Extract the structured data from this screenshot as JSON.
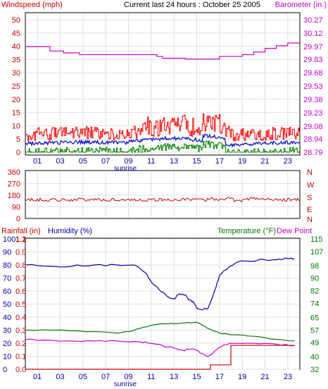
{
  "chart_data": [
    {
      "type": "line",
      "title": "Current last 24 hours : October 25 2005",
      "left_axis": {
        "label": "Windspeed (mph)",
        "ticks": [
          0,
          5,
          10,
          15,
          20,
          25,
          30,
          35,
          40,
          45,
          50
        ],
        "ylim": [
          0,
          50
        ]
      },
      "right_axis": {
        "label": "Barometer (in.)",
        "ticks": [
          28.79,
          28.94,
          29.08,
          29.23,
          29.38,
          29.53,
          29.68,
          29.83,
          29.97,
          30.12,
          30.27
        ],
        "ylim": [
          28.79,
          30.27
        ]
      },
      "x_ticks": [
        "01",
        "03",
        "05",
        "07",
        "09",
        "11",
        "13",
        "15",
        "17",
        "19",
        "21",
        "23"
      ],
      "sunrise_label": "sunrise",
      "grid": true,
      "colors": {
        "windspeed_gust": "#ff0000",
        "windspeed_avg": "#0000cc",
        "windspeed_min": "#008000",
        "barometer": "#cc00cc"
      },
      "series": [
        {
          "name": "Barometer",
          "axis": "right",
          "x": [
            0,
            2.0,
            2.1,
            3.0,
            3.3,
            4.5,
            4.7,
            8.0,
            11.5,
            12.0,
            13.0,
            14.0,
            16.8,
            17.0,
            19.0,
            20.0,
            21.0,
            22.0,
            23.0,
            24.0
          ],
          "values": [
            29.97,
            29.97,
            29.92,
            29.92,
            29.9,
            29.9,
            29.88,
            29.88,
            29.86,
            29.84,
            29.84,
            29.83,
            29.83,
            29.86,
            29.88,
            29.91,
            29.95,
            29.98,
            30.01,
            30.01
          ]
        }
      ]
    },
    {
      "type": "line",
      "left_axis": {
        "ticks": [
          0,
          90,
          180,
          270,
          360
        ],
        "ylim": [
          0,
          360
        ]
      },
      "right_labels": [
        "N",
        "W",
        "S",
        "E",
        "N"
      ],
      "x_ticks": [
        "01",
        "03",
        "05",
        "07",
        "09",
        "11",
        "13",
        "15",
        "17",
        "19",
        "21",
        "23"
      ],
      "colors": {
        "direction": "#cc0000"
      },
      "series": [
        {
          "name": "Wind direction",
          "mean": 145
        }
      ]
    },
    {
      "type": "line",
      "rainfall_axis": {
        "label": "Rainfall (in)",
        "ticks": [
          0.0,
          0.1,
          0.2,
          0.3,
          0.4,
          0.5,
          0.6,
          0.7,
          0.8,
          0.9,
          1.1,
          1.2
        ],
        "ylim": [
          0,
          1.2
        ]
      },
      "humidity_axis": {
        "label": "Humidity (%)",
        "ticks": [
          0,
          10,
          20,
          30,
          40,
          50,
          60,
          70,
          80,
          90,
          100
        ],
        "ylim": [
          0,
          100
        ]
      },
      "temperature_label": "Temperature (°F)",
      "dewpoint_label": "Dew Point",
      "right_axis": {
        "ticks": [
          32,
          40,
          49,
          57,
          65,
          74,
          82,
          90,
          98,
          107,
          115
        ],
        "ylim": [
          32,
          115
        ]
      },
      "x_ticks": [
        "01",
        "03",
        "05",
        "07",
        "09",
        "11",
        "13",
        "15",
        "17",
        "19",
        "21",
        "23"
      ],
      "sunrise_label": "sunrise",
      "colors": {
        "rainfall": "#cc0000",
        "humidity": "#0000aa",
        "temperature": "#007700",
        "dewpoint": "#cc00cc"
      },
      "series": [
        {
          "name": "Humidity",
          "axis": "humidity",
          "x": [
            0,
            2,
            4,
            6,
            8,
            9.5,
            10.5,
            11.0,
            11.7,
            12.4,
            13.0,
            13.5,
            14.0,
            14.3,
            14.7,
            15.0,
            15.6,
            16.0,
            16.6,
            17.0,
            17.8,
            18.5,
            19.3,
            21.0,
            22.0,
            23.0,
            23.6
          ],
          "values": [
            80,
            79,
            79,
            80,
            80,
            80,
            74,
            67,
            61,
            56,
            54,
            58,
            57,
            53,
            52,
            47,
            46,
            47,
            61,
            72,
            78,
            82,
            83,
            84,
            84,
            85,
            85
          ]
        },
        {
          "name": "Temperature",
          "axis": "right",
          "x": [
            0,
            3,
            6,
            8,
            9,
            10,
            11,
            12,
            13,
            14,
            15,
            15.5,
            16,
            17,
            18,
            20,
            22,
            23.6
          ],
          "values": [
            57,
            57,
            56,
            55,
            56,
            58,
            60,
            61,
            61,
            61.5,
            62,
            60,
            58,
            55,
            54,
            53,
            51,
            50
          ]
        },
        {
          "name": "Dew Point",
          "axis": "right",
          "x": [
            0,
            2,
            4,
            6,
            8,
            10,
            11,
            12,
            13,
            13.8,
            14.5,
            15,
            15.5,
            16,
            16.5,
            17.0,
            17.5,
            18.0,
            20,
            22,
            23.6
          ],
          "values": [
            51,
            50.5,
            50,
            50,
            50,
            49.5,
            48.5,
            47,
            45.5,
            44,
            45,
            44,
            42,
            40,
            43,
            46,
            47.5,
            48.5,
            48.5,
            48,
            47
          ]
        },
        {
          "name": "Rainfall",
          "axis": "rainfall",
          "x": [
            0,
            16.2,
            16.2,
            18.0,
            18.0,
            23.6
          ],
          "values": [
            0.0,
            0.0,
            0.04,
            0.04,
            0.22,
            0.22
          ]
        }
      ]
    }
  ]
}
